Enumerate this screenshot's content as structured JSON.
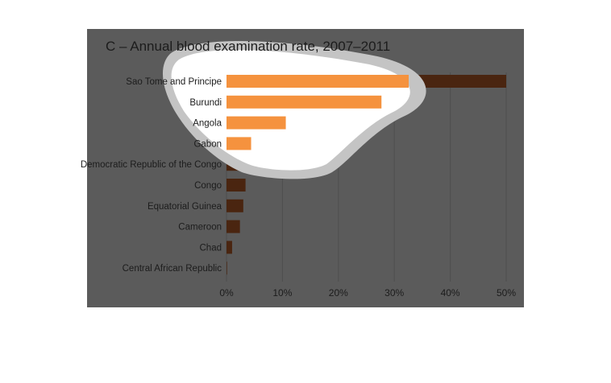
{
  "chart_data": {
    "type": "bar",
    "orientation": "horizontal",
    "title": "C – Annual blood examination rate, 2007–2011",
    "categories": [
      "Sao Tome and Principe",
      "Burundi",
      "Angola",
      "Gabon",
      "Democratic Republic of the Congo",
      "Congo",
      "Equatorial Guinea",
      "Cameroon",
      "Chad",
      "Central African Republic"
    ],
    "values": [
      50,
      27.7,
      10.6,
      4.4,
      4.2,
      3.4,
      3.0,
      2.4,
      1.0,
      0.1
    ],
    "xlim": [
      0,
      50
    ],
    "xticks": [
      "0%",
      "10%",
      "20%",
      "30%",
      "40%",
      "50%"
    ],
    "grid": true,
    "colors": {
      "panel": "#5b5b5b",
      "bar": "#4a2510",
      "highlight_bar": "#f5923e",
      "spotlight": "#ffffff",
      "text": "#1c1c1c"
    }
  }
}
